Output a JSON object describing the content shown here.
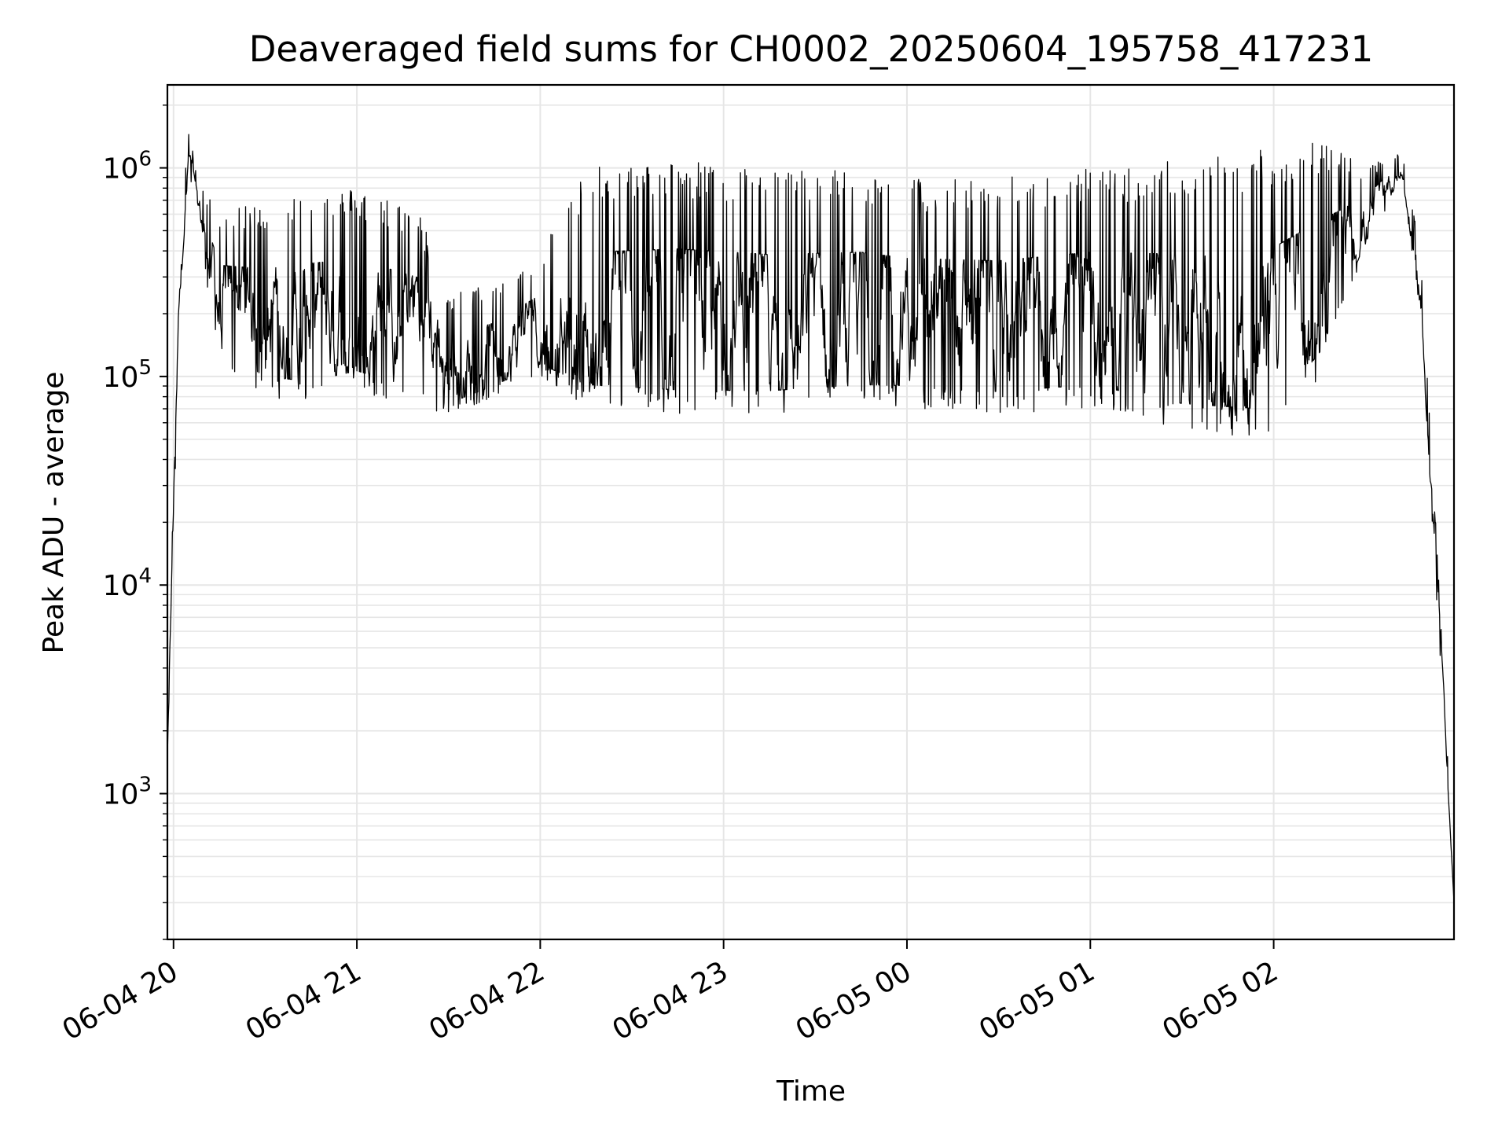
{
  "chart_data": {
    "type": "line",
    "title": "Deaveraged field sums for CH0002_20250604_195758_417231",
    "xlabel": "Time",
    "ylabel": "Peak ADU - average",
    "yscale": "log",
    "grid": true,
    "ylim": [
      200,
      2500000
    ],
    "x_range": [
      "2025-06-04 19:58",
      "2025-06-05 02:59"
    ],
    "x_ticks": [
      {
        "time": "2025-06-04 20:00",
        "label": "06-04 20"
      },
      {
        "time": "2025-06-04 21:00",
        "label": "06-04 21"
      },
      {
        "time": "2025-06-04 22:00",
        "label": "06-04 22"
      },
      {
        "time": "2025-06-04 23:00",
        "label": "06-04 23"
      },
      {
        "time": "2025-06-05 00:00",
        "label": "06-05 00"
      },
      {
        "time": "2025-06-05 01:00",
        "label": "06-05 01"
      },
      {
        "time": "2025-06-05 02:00",
        "label": "06-05 02"
      }
    ],
    "y_ticks": [
      {
        "value": 1000,
        "base": "10",
        "exp": "3"
      },
      {
        "value": 10000,
        "base": "10",
        "exp": "4"
      },
      {
        "value": 100000,
        "base": "10",
        "exp": "5"
      },
      {
        "value": 1000000,
        "base": "10",
        "exp": "6"
      }
    ],
    "line_color": "#000000",
    "grid_color": "#e6e6e6",
    "series": [
      {
        "envelope": [
          {
            "time": "2025-06-04 19:58",
            "low": 1500,
            "high": 1500
          },
          {
            "time": "2025-06-04 19:59",
            "low": 5000,
            "high": 8000
          },
          {
            "time": "2025-06-04 20:02",
            "low": 200000,
            "high": 500000
          },
          {
            "time": "2025-06-04 20:05",
            "low": 1000000,
            "high": 1500000
          },
          {
            "time": "2025-06-04 20:08",
            "low": 500000,
            "high": 900000
          },
          {
            "time": "2025-06-04 20:15",
            "low": 120000,
            "high": 600000
          },
          {
            "time": "2025-06-04 20:30",
            "low": 80000,
            "high": 700000
          },
          {
            "time": "2025-06-04 20:45",
            "low": 75000,
            "high": 800000
          },
          {
            "time": "2025-06-04 21:00",
            "low": 85000,
            "high": 800000
          },
          {
            "time": "2025-06-04 21:20",
            "low": 70000,
            "high": 650000
          },
          {
            "time": "2025-06-04 21:30",
            "low": 65000,
            "high": 250000
          },
          {
            "time": "2025-06-04 21:45",
            "low": 80000,
            "high": 280000
          },
          {
            "time": "2025-06-04 22:00",
            "low": 100000,
            "high": 400000
          },
          {
            "time": "2025-06-04 22:15",
            "low": 70000,
            "high": 1000000
          },
          {
            "time": "2025-06-04 22:45",
            "low": 65000,
            "high": 1100000
          },
          {
            "time": "2025-06-04 23:15",
            "low": 65000,
            "high": 1000000
          },
          {
            "time": "2025-06-04 23:45",
            "low": 70000,
            "high": 1000000
          },
          {
            "time": "2025-06-05 00:00",
            "low": 70000,
            "high": 900000
          },
          {
            "time": "2025-06-05 00:30",
            "low": 65000,
            "high": 900000
          },
          {
            "time": "2025-06-05 01:00",
            "low": 70000,
            "high": 1000000
          },
          {
            "time": "2025-06-05 01:30",
            "low": 55000,
            "high": 1100000
          },
          {
            "time": "2025-06-05 02:00",
            "low": 50000,
            "high": 1300000
          },
          {
            "time": "2025-06-05 02:15",
            "low": 100000,
            "high": 1400000
          },
          {
            "time": "2025-06-05 02:30",
            "low": 400000,
            "high": 1000000
          },
          {
            "time": "2025-06-05 02:42",
            "low": 900000,
            "high": 1200000
          },
          {
            "time": "2025-06-05 02:48",
            "low": 200000,
            "high": 400000
          },
          {
            "time": "2025-06-05 02:53",
            "low": 10000,
            "high": 20000
          },
          {
            "time": "2025-06-05 02:56",
            "low": 2000,
            "high": 3000
          },
          {
            "time": "2025-06-05 02:59",
            "low": 300,
            "high": 300
          }
        ]
      }
    ]
  }
}
